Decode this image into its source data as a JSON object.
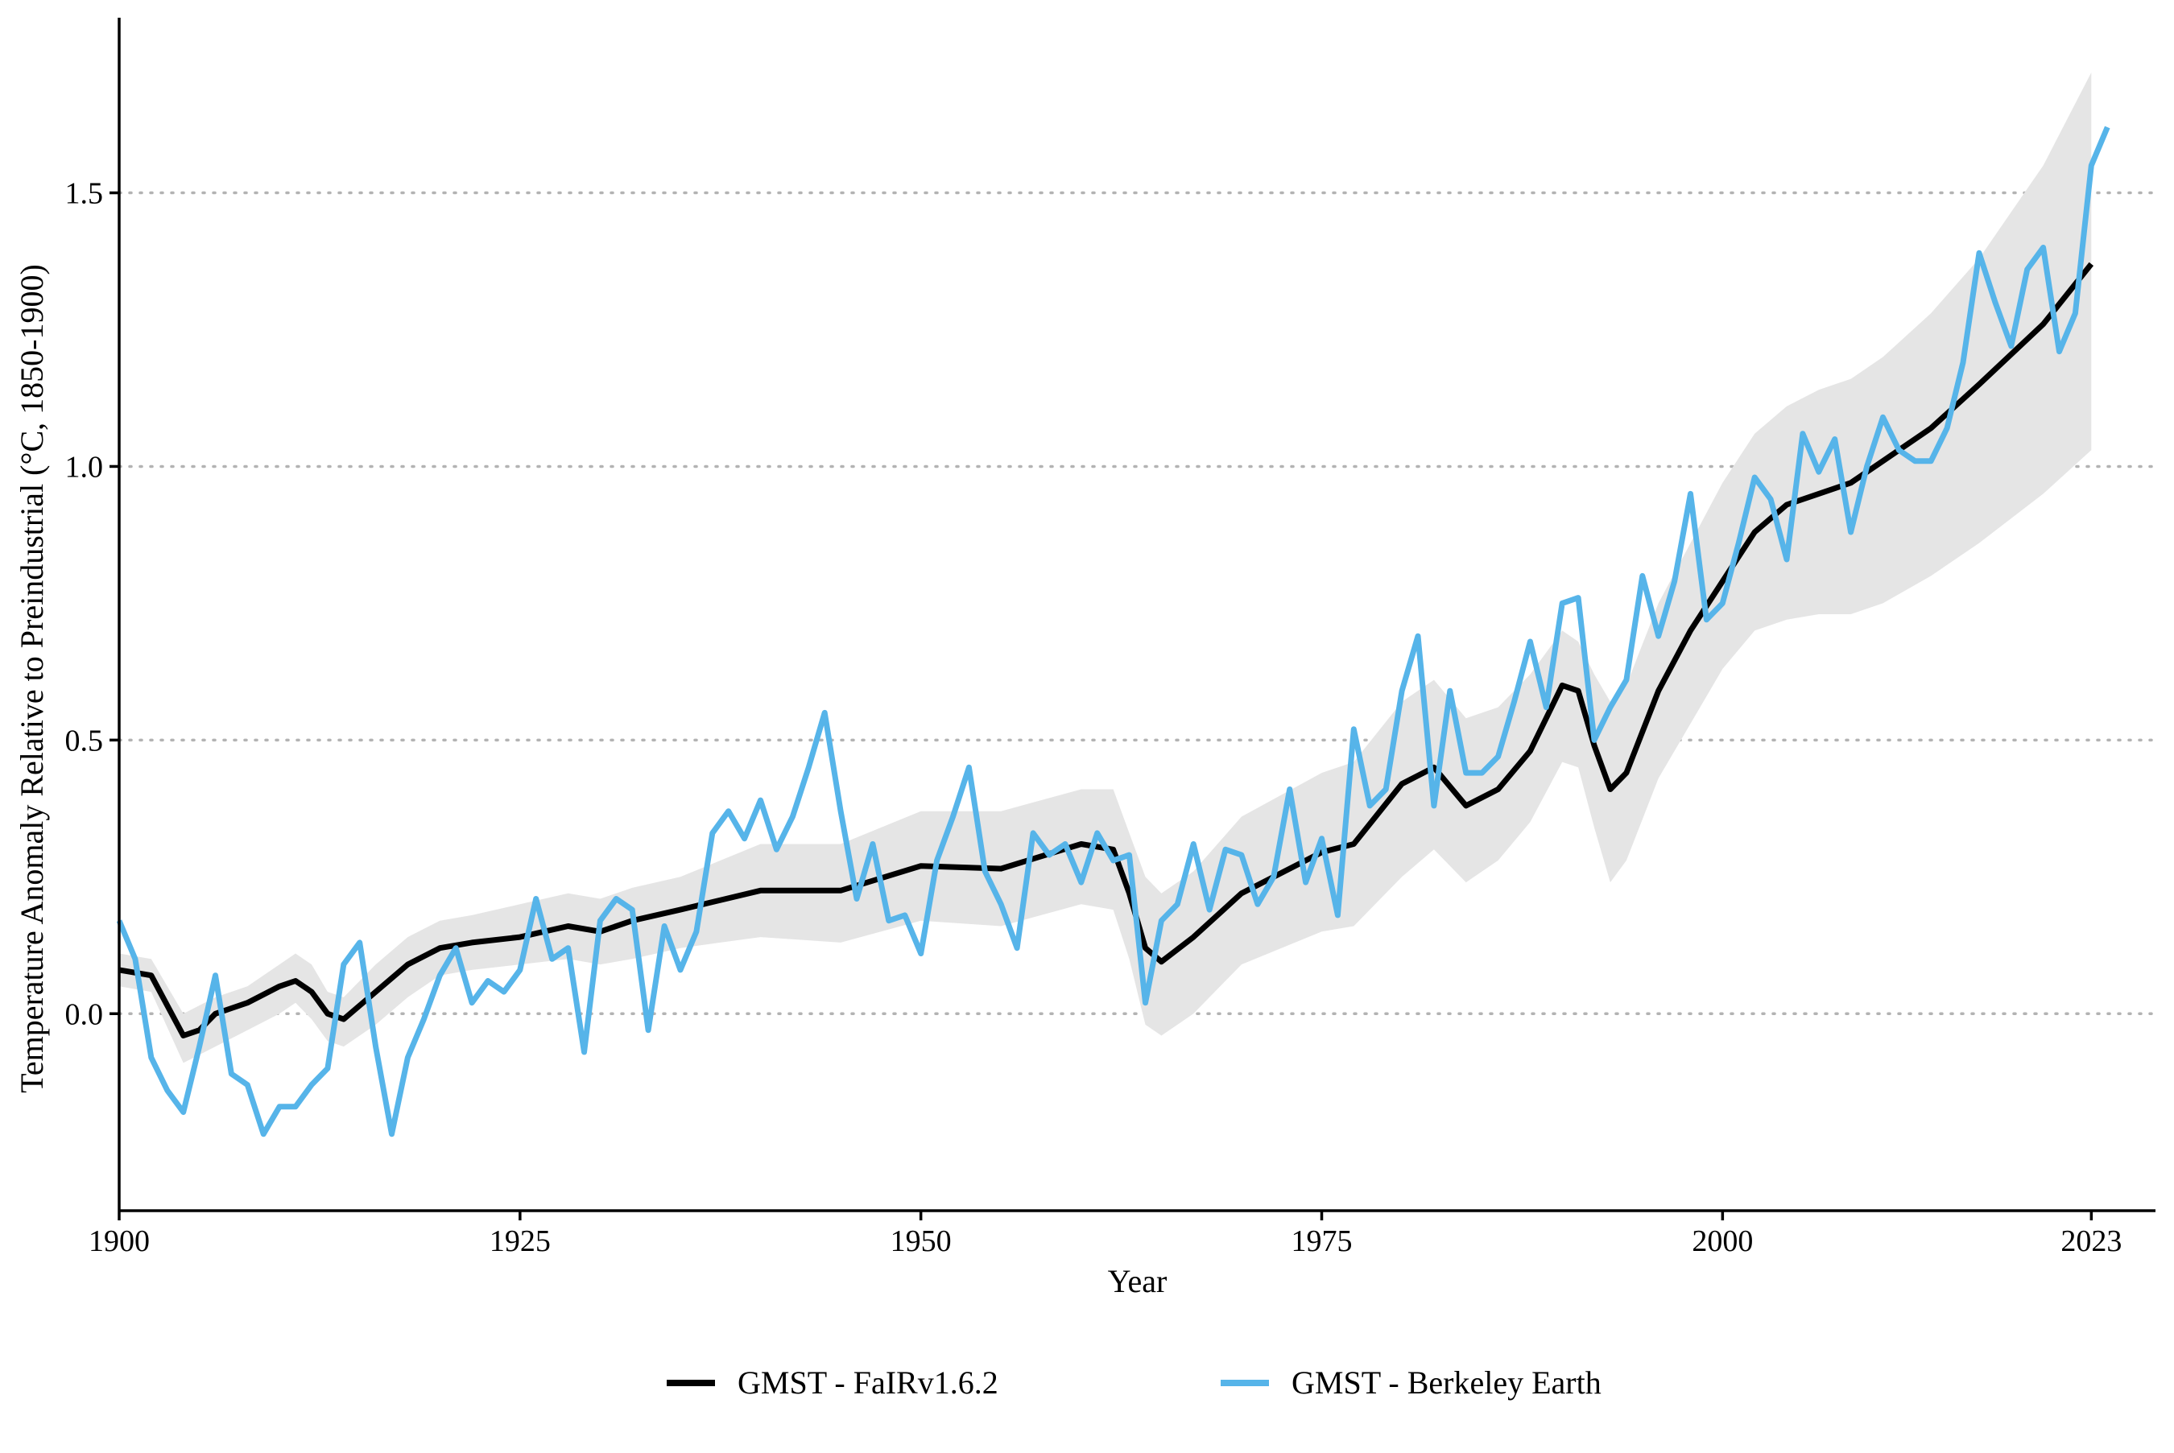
{
  "chart_data": {
    "type": "line",
    "title": "",
    "xlabel": "Year",
    "ylabel": "Temperature Anomaly Relative to Preindustrial (°C, 1850-1900)",
    "xlim": [
      1900,
      2027
    ],
    "ylim": [
      -0.36,
      1.82
    ],
    "x_ticks": [
      1900,
      1925,
      1950,
      1975,
      2000,
      2023
    ],
    "x_tick_labels": [
      "1900",
      "1925",
      "1950",
      "1975",
      "2000",
      "2023"
    ],
    "y_ticks": [
      0.0,
      0.5,
      1.0,
      1.5
    ],
    "y_tick_labels": [
      "0.0",
      "0.5",
      "1.0",
      "1.5"
    ],
    "grid": "horizontal dotted",
    "legend_position": "bottom",
    "colors": {
      "fair": "#000000",
      "berkeley": "#56B4E9",
      "band": "#e5e5e5",
      "grid": "#b3b3b3"
    },
    "series": [
      {
        "name": "GMST - FaIRv1.6.2",
        "color": "#000000",
        "x": [
          1900,
          1902,
          1904,
          1905,
          1906,
          1907,
          1908,
          1910,
          1911,
          1912,
          1913,
          1914,
          1916,
          1918,
          1920,
          1922,
          1925,
          1928,
          1930,
          1932,
          1935,
          1940,
          1945,
          1950,
          1955,
          1960,
          1962,
          1963,
          1964,
          1965,
          1967,
          1970,
          1975,
          1977,
          1980,
          1982,
          1984,
          1986,
          1988,
          1990,
          1991,
          1992,
          1993,
          1994,
          1996,
          1998,
          2000,
          2002,
          2004,
          2006,
          2008,
          2010,
          2013,
          2016,
          2020,
          2023
        ],
        "y": [
          0.08,
          0.07,
          -0.04,
          -0.03,
          0.0,
          0.01,
          0.02,
          0.05,
          0.06,
          0.04,
          0.0,
          -0.01,
          0.04,
          0.09,
          0.12,
          0.13,
          0.14,
          0.16,
          0.15,
          0.17,
          0.19,
          0.225,
          0.225,
          0.27,
          0.265,
          0.31,
          0.3,
          0.22,
          0.12,
          0.095,
          0.14,
          0.22,
          0.295,
          0.31,
          0.42,
          0.45,
          0.38,
          0.41,
          0.48,
          0.6,
          0.59,
          0.49,
          0.41,
          0.44,
          0.59,
          0.7,
          0.79,
          0.88,
          0.93,
          0.95,
          0.97,
          1.01,
          1.07,
          1.15,
          1.26,
          1.37
        ]
      },
      {
        "name": "GMST - Berkeley Earth",
        "color": "#56B4E9",
        "x": [
          1900,
          1901,
          1902,
          1903,
          1904,
          1905,
          1906,
          1907,
          1908,
          1909,
          1910,
          1911,
          1912,
          1913,
          1914,
          1915,
          1916,
          1917,
          1918,
          1919,
          1920,
          1921,
          1922,
          1923,
          1924,
          1925,
          1926,
          1927,
          1928,
          1929,
          1930,
          1931,
          1932,
          1933,
          1934,
          1935,
          1936,
          1937,
          1938,
          1939,
          1940,
          1941,
          1942,
          1943,
          1944,
          1945,
          1946,
          1947,
          1948,
          1949,
          1950,
          1951,
          1952,
          1953,
          1954,
          1955,
          1956,
          1957,
          1958,
          1959,
          1960,
          1961,
          1962,
          1963,
          1964,
          1965,
          1966,
          1967,
          1968,
          1969,
          1970,
          1971,
          1972,
          1973,
          1974,
          1975,
          1976,
          1977,
          1978,
          1979,
          1980,
          1981,
          1982,
          1983,
          1984,
          1985,
          1986,
          1987,
          1988,
          1989,
          1990,
          1991,
          1992,
          1993,
          1994,
          1995,
          1996,
          1997,
          1998,
          1999,
          2000,
          2001,
          2002,
          2003,
          2004,
          2005,
          2006,
          2007,
          2008,
          2009,
          2010,
          2011,
          2012,
          2013,
          2014,
          2015,
          2016,
          2017,
          2018,
          2019,
          2020,
          2021,
          2022,
          2023,
          2024
        ],
        "y": [
          0.17,
          0.1,
          -0.08,
          -0.14,
          -0.18,
          -0.06,
          0.07,
          -0.11,
          -0.13,
          -0.22,
          -0.17,
          -0.17,
          -0.13,
          -0.1,
          0.09,
          0.13,
          -0.06,
          -0.22,
          -0.08,
          -0.01,
          0.07,
          0.12,
          0.02,
          0.06,
          0.04,
          0.08,
          0.21,
          0.1,
          0.12,
          -0.07,
          0.17,
          0.21,
          0.19,
          -0.03,
          0.16,
          0.08,
          0.15,
          0.33,
          0.37,
          0.32,
          0.39,
          0.3,
          0.36,
          0.45,
          0.55,
          0.37,
          0.21,
          0.31,
          0.17,
          0.18,
          0.11,
          0.28,
          0.36,
          0.45,
          0.26,
          0.2,
          0.12,
          0.33,
          0.29,
          0.31,
          0.24,
          0.33,
          0.28,
          0.29,
          0.02,
          0.17,
          0.2,
          0.31,
          0.19,
          0.3,
          0.29,
          0.2,
          0.25,
          0.41,
          0.24,
          0.32,
          0.18,
          0.52,
          0.38,
          0.41,
          0.59,
          0.69,
          0.38,
          0.59,
          0.44,
          0.44,
          0.47,
          0.57,
          0.68,
          0.56,
          0.75,
          0.76,
          0.5,
          0.56,
          0.61,
          0.8,
          0.69,
          0.79,
          0.95,
          0.72,
          0.75,
          0.86,
          0.98,
          0.94,
          0.83,
          1.06,
          0.99,
          1.05,
          0.88,
          1.0,
          1.09,
          1.03,
          1.01,
          1.01,
          1.07,
          1.19,
          1.39,
          1.3,
          1.22,
          1.36,
          1.4,
          1.21,
          1.28,
          1.55,
          1.62
        ]
      }
    ],
    "uncertainty_band": {
      "x": [
        1900,
        1902,
        1904,
        1906,
        1908,
        1910,
        1911,
        1912,
        1913,
        1914,
        1916,
        1918,
        1920,
        1922,
        1925,
        1928,
        1930,
        1932,
        1935,
        1940,
        1945,
        1950,
        1955,
        1960,
        1962,
        1963,
        1964,
        1965,
        1967,
        1970,
        1975,
        1977,
        1980,
        1982,
        1984,
        1986,
        1988,
        1990,
        1991,
        1992,
        1993,
        1994,
        1996,
        1998,
        2000,
        2002,
        2004,
        2006,
        2008,
        2010,
        2013,
        2016,
        2020,
        2023
      ],
      "upper": [
        0.11,
        0.1,
        0.0,
        0.03,
        0.05,
        0.09,
        0.11,
        0.09,
        0.04,
        0.03,
        0.09,
        0.14,
        0.17,
        0.18,
        0.2,
        0.22,
        0.21,
        0.23,
        0.25,
        0.31,
        0.31,
        0.37,
        0.37,
        0.41,
        0.41,
        0.33,
        0.25,
        0.22,
        0.26,
        0.36,
        0.44,
        0.46,
        0.57,
        0.61,
        0.54,
        0.56,
        0.62,
        0.7,
        0.68,
        0.62,
        0.57,
        0.6,
        0.75,
        0.86,
        0.97,
        1.06,
        1.11,
        1.14,
        1.16,
        1.2,
        1.28,
        1.38,
        1.55,
        1.72
      ],
      "lower": [
        0.05,
        0.04,
        -0.09,
        -0.06,
        -0.03,
        0.0,
        0.02,
        -0.01,
        -0.05,
        -0.06,
        -0.02,
        0.03,
        0.07,
        0.08,
        0.09,
        0.1,
        0.09,
        0.1,
        0.12,
        0.14,
        0.13,
        0.17,
        0.16,
        0.2,
        0.19,
        0.1,
        -0.02,
        -0.04,
        0.0,
        0.09,
        0.15,
        0.16,
        0.25,
        0.3,
        0.24,
        0.28,
        0.35,
        0.46,
        0.45,
        0.34,
        0.24,
        0.28,
        0.43,
        0.53,
        0.63,
        0.7,
        0.72,
        0.73,
        0.73,
        0.75,
        0.8,
        0.86,
        0.95,
        1.03
      ]
    }
  }
}
